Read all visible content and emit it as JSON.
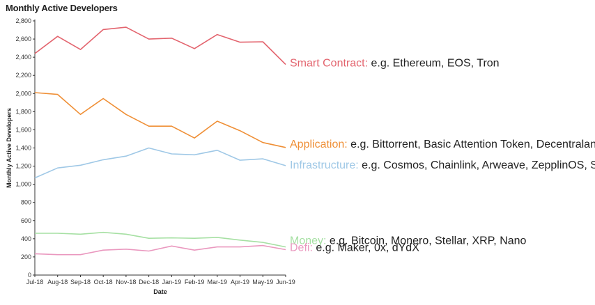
{
  "chart_data": {
    "type": "line",
    "title": "Monthly Active Developers",
    "xlabel": "Date",
    "ylabel": "Monthly Active Developers",
    "ylim": [
      0,
      2800
    ],
    "yticks": [
      0,
      200,
      400,
      600,
      800,
      1000,
      1200,
      1400,
      1600,
      1800,
      2000,
      2200,
      2400,
      2600,
      2800
    ],
    "ytick_labels": [
      "0",
      "200",
      "400",
      "600",
      "800",
      "1,000",
      "1,200",
      "1,400",
      "1,600",
      "1,800",
      "2,000",
      "2,200",
      "2,400",
      "2,600",
      "2,800"
    ],
    "categories": [
      "Jul-18",
      "Aug-18",
      "Sep-18",
      "Oct-18",
      "Nov-18",
      "Dec-18",
      "Jan-19",
      "Feb-19",
      "Mar-19",
      "Apr-19",
      "May-19",
      "Jun-19"
    ],
    "grid": false,
    "series": [
      {
        "name": "Smart Contract",
        "desc": "e.g. Ethereum, EOS, Tron",
        "color": "#e3646e",
        "values": [
          2440,
          2630,
          2485,
          2705,
          2730,
          2600,
          2610,
          2495,
          2650,
          2565,
          2570,
          2320
        ]
      },
      {
        "name": "Application",
        "desc": "e.g. Bittorrent, Basic Attention Token, Decentraland, Bread",
        "color": "#ef8f36",
        "values": [
          2010,
          1990,
          1770,
          1945,
          1770,
          1640,
          1640,
          1510,
          1695,
          1590,
          1460,
          1405
        ]
      },
      {
        "name": "Infrastructure",
        "desc": "e.g. Cosmos, Chainlink, Arweave, ZepplinOS, Siacoin",
        "color": "#9fc8e6",
        "values": [
          1070,
          1180,
          1210,
          1270,
          1310,
          1400,
          1335,
          1325,
          1375,
          1265,
          1280,
          1205
        ]
      },
      {
        "name": "Money",
        "desc": "e.g. Bitcoin, Monero, Stellar, XRP, Nano",
        "color": "#a6e0a3",
        "values": [
          460,
          460,
          450,
          470,
          450,
          405,
          410,
          405,
          415,
          385,
          360,
          310
        ]
      },
      {
        "name": "Defi",
        "desc": "e.g. Maker, 0x, dYdX",
        "color": "#ea98bf",
        "values": [
          235,
          225,
          225,
          275,
          285,
          265,
          320,
          275,
          310,
          310,
          325,
          280
        ]
      }
    ]
  }
}
